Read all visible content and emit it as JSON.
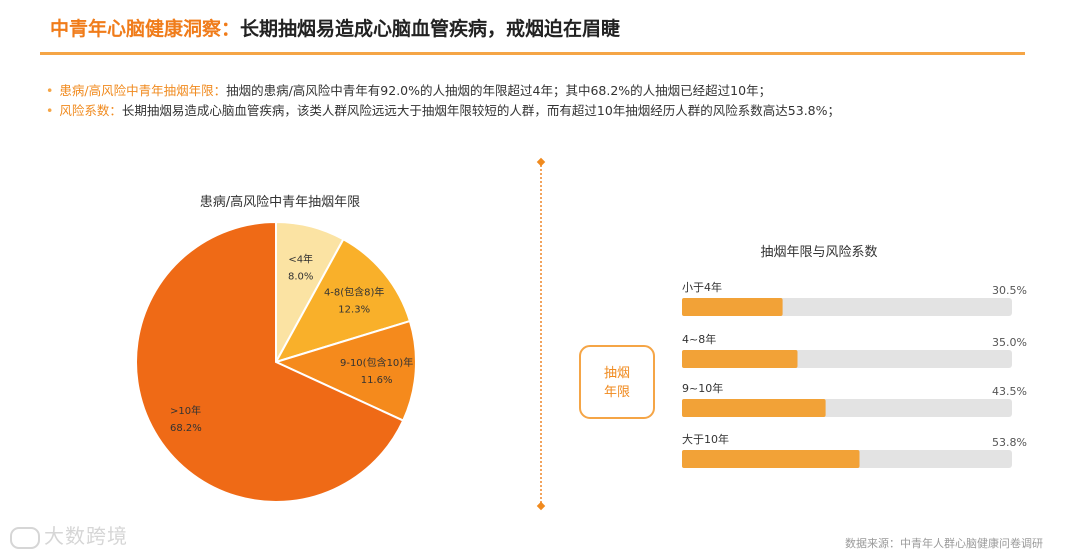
{
  "header": {
    "title_accent": "中青年心脑健康洞察：",
    "title_main": "长期抽烟易造成心脑血管疾病，戒烟迫在眉睫"
  },
  "bullets": [
    {
      "dot": "•",
      "key": "患病/高风险中青年抽烟年限：",
      "text": "抽烟的患病/高风险中青年有92.0%的人抽烟的年限超过4年；其中68.2%的人抽烟已经超过10年；"
    },
    {
      "dot": "•",
      "key": "风险系数：",
      "text": "长期抽烟易造成心脑血管疾病，该类人群风险远远大于抽烟年限较短的人群，而有超过10年抽烟经历人群的风险系数高达53.8%；"
    }
  ],
  "footer": {
    "source": "数据来源：中青年人群心脑健康问卷调研",
    "watermark": "大数跨境"
  },
  "colors": {
    "accent": "#f07c1a",
    "pie": [
      "#fbe3a3",
      "#f9b02a",
      "#f58a1c",
      "#ef6a16"
    ],
    "bar_fill": "#f2a237",
    "bar_track": "#e3e3e3",
    "box_border": "#f5a546"
  },
  "chart_data": [
    {
      "type": "pie",
      "title": "患病/高风险中青年抽烟年限",
      "slices": [
        {
          "label": "<4年",
          "value": 8.0,
          "value_label": "8.0%"
        },
        {
          "label": "4-8(包含8)年",
          "value": 12.3,
          "value_label": "12.3%"
        },
        {
          "label": "9-10(包含10)年",
          "value": 11.6,
          "value_label": "11.6%"
        },
        {
          "label": ">10年",
          "value": 68.2,
          "value_label": "68.2%"
        }
      ]
    },
    {
      "type": "bar",
      "orientation": "horizontal",
      "title": "抽烟年限与风险系数",
      "axis_box_label": [
        "抽烟",
        "年限"
      ],
      "categories": [
        "小于4年",
        "4~8年",
        "9~10年",
        "大于10年"
      ],
      "values": [
        30.5,
        35.0,
        43.5,
        53.8
      ],
      "value_labels": [
        "30.5%",
        "35.0%",
        "43.5%",
        "53.8%"
      ],
      "xlim": [
        0,
        100
      ]
    }
  ]
}
